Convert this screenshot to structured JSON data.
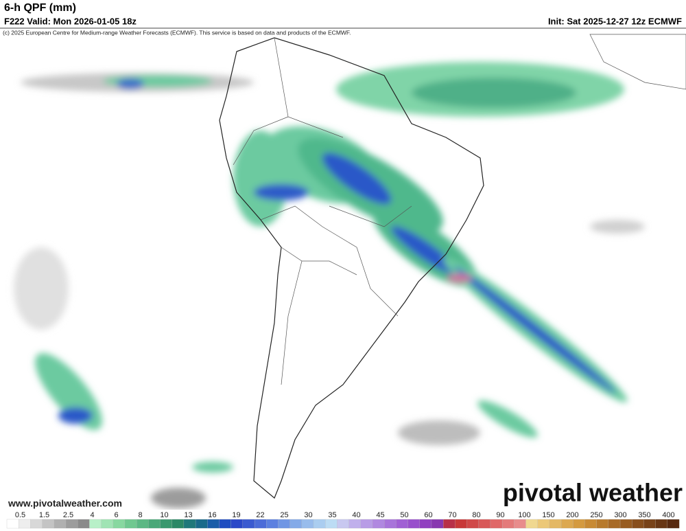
{
  "header": {
    "title": "6-h QPF (mm)",
    "valid": "F222 Valid: Mon 2026-01-05 18z",
    "init": "Init: Sat 2025-12-27 12z ECMWF",
    "credit": "(c) 2025 European Centre for Medium-range Weather Forecasts (ECMWF). This service is based on data and products of the ECMWF."
  },
  "footer": {
    "website": "www.pivotalweather.com",
    "logo": "pivotal weather"
  },
  "colorbar": {
    "ticks": [
      0.5,
      1.5,
      2.5,
      4,
      6,
      8,
      10,
      13,
      16,
      19,
      22,
      25,
      30,
      35,
      40,
      45,
      50,
      60,
      70,
      80,
      90,
      100,
      150,
      200,
      250,
      300,
      350,
      400
    ],
    "colors": [
      "#ffffff",
      "#eeeeee",
      "#d8d8d8",
      "#c4c4c4",
      "#b0b0b0",
      "#9c9c9c",
      "#8a8a8a",
      "#b8f0c8",
      "#a0e4b4",
      "#88d8a0",
      "#70c890",
      "#5cb884",
      "#4aa878",
      "#3a986e",
      "#2c8866",
      "#20787a",
      "#1a6a8a",
      "#1a5ca8",
      "#1e4cc0",
      "#2a48c8",
      "#3a5ad0",
      "#4c6cd8",
      "#5c80e0",
      "#7096e4",
      "#84aae8",
      "#98bcec",
      "#aacdf0",
      "#bcdcf4",
      "#c8c8f0",
      "#c0b0ec",
      "#b89ce6",
      "#b088e0",
      "#a874da",
      "#a060d4",
      "#9850cc",
      "#9040c0",
      "#8838b0",
      "#b83048",
      "#c83838",
      "#d04848",
      "#d85858",
      "#e06868",
      "#e47a7a",
      "#e88c8c",
      "#f0d890",
      "#ecc878",
      "#e4b864",
      "#dca850",
      "#d49a40",
      "#c88a34",
      "#b87a2c",
      "#a86a26",
      "#985c20",
      "#884e1c",
      "#784218",
      "#683614",
      "#582a10"
    ]
  }
}
